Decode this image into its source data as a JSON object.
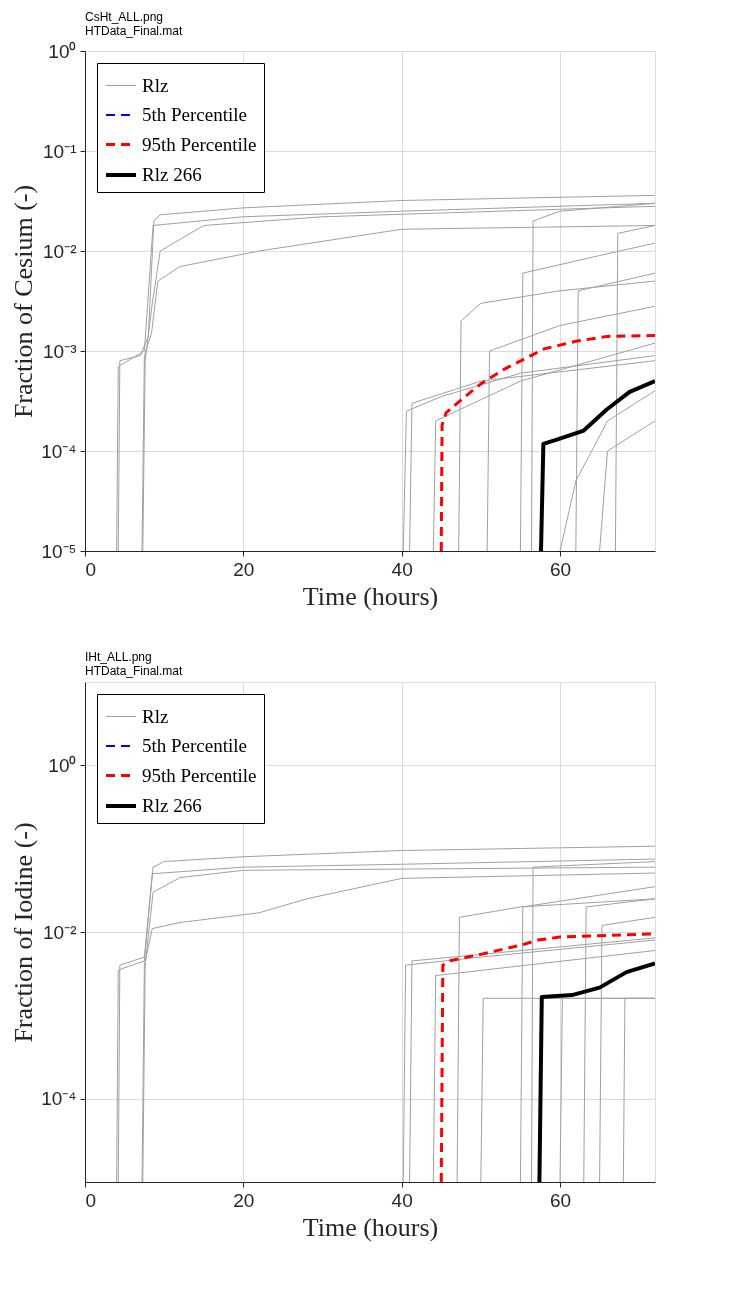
{
  "chart_data": [
    {
      "type": "line",
      "annotations": [
        "CsHt_ALL.png",
        "HTData_Final.mat"
      ],
      "xlabel": "Time (hours)",
      "ylabel": "Fraction of Cesium (-)",
      "log": "y",
      "grid": true,
      "legend": "top left",
      "xlim": [
        0,
        72
      ],
      "xticks": [
        0,
        20,
        40,
        60
      ],
      "ylim": [
        1e-05,
        1
      ],
      "yticks": [
        {
          "value": 1e-05,
          "label": "10⁻⁵"
        },
        {
          "value": 0.0001,
          "label": "10⁻⁴"
        },
        {
          "value": 0.001,
          "label": "10⁻³"
        },
        {
          "value": 0.01,
          "label": "10⁻²"
        },
        {
          "value": 0.1,
          "label": "10⁻¹"
        },
        {
          "value": 1,
          "label": "10⁰"
        }
      ],
      "series": [
        {
          "name": "Rlz",
          "color": "#a0a0a0",
          "line_style": "solid",
          "x": [
            4.2,
            4.4,
            7.0,
            8.0,
            8.7,
            9.5,
            20,
            40,
            72
          ],
          "values": [
            1e-05,
            0.0008,
            0.0009,
            0.0014,
            0.02,
            0.023,
            0.027,
            0.032,
            0.036
          ]
        },
        {
          "color": "#a0a0a0",
          "line_style": "solid",
          "x": [
            4.0,
            4.2,
            7.5,
            8.6,
            20,
            40,
            72
          ],
          "values": [
            1e-05,
            0.0007,
            0.001,
            0.018,
            0.022,
            0.025,
            0.03
          ]
        },
        {
          "color": "#a0a0a0",
          "line_style": "solid",
          "x": [
            7.2,
            7.5,
            8.4,
            9.2,
            12,
            22,
            40,
            72
          ],
          "values": [
            1e-05,
            0.0009,
            0.0015,
            0.005,
            0.007,
            0.01,
            0.0165,
            0.018
          ]
        },
        {
          "color": "#a0a0a0",
          "line_style": "solid",
          "x": [
            7.3,
            7.6,
            8.5,
            9.5,
            15,
            30,
            72
          ],
          "values": [
            1e-05,
            0.0008,
            0.003,
            0.01,
            0.018,
            0.022,
            0.028
          ]
        },
        {
          "color": "#a0a0a0",
          "line_style": "solid",
          "x": [
            56.4,
            56.6,
            60,
            72
          ],
          "values": [
            1e-05,
            0.02,
            0.025,
            0.03
          ]
        },
        {
          "color": "#a0a0a0",
          "line_style": "solid",
          "x": [
            47.2,
            47.5,
            50,
            60,
            72
          ],
          "values": [
            1e-05,
            0.002,
            0.003,
            0.004,
            0.005
          ]
        },
        {
          "color": "#a0a0a0",
          "line_style": "solid",
          "x": [
            50.8,
            51.1,
            60,
            72
          ],
          "values": [
            1e-05,
            0.001,
            0.0018,
            0.0028
          ]
        },
        {
          "color": "#a0a0a0",
          "line_style": "solid",
          "x": [
            55,
            55.3,
            65,
            72
          ],
          "values": [
            1e-05,
            0.006,
            0.009,
            0.012
          ]
        },
        {
          "color": "#a0a0a0",
          "line_style": "solid",
          "x": [
            62,
            62.3,
            72
          ],
          "values": [
            1e-05,
            0.004,
            0.006
          ]
        },
        {
          "color": "#a0a0a0",
          "line_style": "solid",
          "x": [
            67,
            67.3,
            72
          ],
          "values": [
            1e-05,
            0.015,
            0.018
          ]
        },
        {
          "color": "#a0a0a0",
          "line_style": "solid",
          "x": [
            40.2,
            40.6,
            45,
            55,
            72
          ],
          "values": [
            1e-05,
            0.00025,
            0.00035,
            0.0006,
            0.0009
          ]
        },
        {
          "color": "#a0a0a0",
          "line_style": "solid",
          "x": [
            41,
            41.3,
            50,
            72
          ],
          "values": [
            1e-05,
            0.0003,
            0.0005,
            0.0008
          ]
        },
        {
          "color": "#a0a0a0",
          "line_style": "solid",
          "x": [
            44,
            44.3,
            55,
            72
          ],
          "values": [
            1e-05,
            0.0002,
            0.0005,
            0.0012
          ]
        },
        {
          "color": "#a0a0a0",
          "line_style": "solid",
          "x": [
            60,
            62,
            66,
            72
          ],
          "values": [
            1e-05,
            5e-05,
            0.0002,
            0.0004
          ]
        },
        {
          "color": "#a0a0a0",
          "line_style": "solid",
          "x": [
            65,
            66,
            72
          ],
          "values": [
            1e-05,
            0.0001,
            0.0002
          ]
        },
        {
          "name": "5th Percentile",
          "color": "#0000ff",
          "line_style": "dashed"
        },
        {
          "name": "95th Percentile",
          "color": "#ff0000",
          "line_style": "dashed",
          "x": [
            45,
            45.1,
            45.6,
            47,
            50,
            53,
            58,
            62,
            66,
            72
          ],
          "values": [
            1e-05,
            0.00018,
            0.00024,
            0.0003,
            0.00047,
            0.00066,
            0.00105,
            0.00125,
            0.0014,
            0.00143
          ]
        },
        {
          "name": "Rlz 266",
          "color": "#000000",
          "line_style": "solid",
          "x": [
            57.6,
            57.9,
            59.6,
            63,
            65.9,
            68.8,
            72
          ],
          "values": [
            1e-05,
            0.000118,
            0.00013,
            0.00016,
            0.00026,
            0.00039,
            0.0005
          ]
        }
      ]
    },
    {
      "type": "line",
      "annotations": [
        "IHt_ALL.png",
        "HTData_Final.mat"
      ],
      "xlabel": "Time (hours)",
      "ylabel": "Fraction of Iodine (-)",
      "log": "y",
      "grid": true,
      "legend": "top left",
      "xlim": [
        0,
        72
      ],
      "xticks": [
        0,
        20,
        40,
        60
      ],
      "ylim": [
        1e-05,
        10
      ],
      "yticks": [
        {
          "value": 0.0001,
          "label": "10⁻⁴"
        },
        {
          "value": 0.01,
          "label": "10⁻²"
        },
        {
          "value": 1,
          "label": "10⁰"
        }
      ],
      "series": [
        {
          "name": "Rlz",
          "color": "#a0a0a0",
          "line_style": "solid",
          "x": [
            4.2,
            4.4,
            7.5,
            8.6,
            10,
            20,
            40,
            72
          ],
          "values": [
            1e-05,
            0.004,
            0.005,
            0.06,
            0.07,
            0.08,
            0.095,
            0.107
          ]
        },
        {
          "color": "#a0a0a0",
          "line_style": "solid",
          "x": [
            4.0,
            4.2,
            7.5,
            8.5,
            20,
            40,
            72
          ],
          "values": [
            1e-05,
            0.0035,
            0.0045,
            0.05,
            0.06,
            0.065,
            0.075
          ]
        },
        {
          "color": "#a0a0a0",
          "line_style": "solid",
          "x": [
            7.2,
            7.5,
            8.5,
            12,
            22,
            28,
            40,
            72
          ],
          "values": [
            1e-05,
            0.004,
            0.011,
            0.013,
            0.017,
            0.025,
            0.044,
            0.051
          ]
        },
        {
          "color": "#a0a0a0",
          "line_style": "solid",
          "x": [
            7.3,
            7.6,
            8.6,
            12,
            20,
            72
          ],
          "values": [
            1e-05,
            0.004,
            0.03,
            0.045,
            0.055,
            0.06
          ]
        },
        {
          "color": "#a0a0a0",
          "line_style": "solid",
          "x": [
            56.4,
            56.6,
            72
          ],
          "values": [
            1e-05,
            0.06,
            0.07
          ]
        },
        {
          "color": "#a0a0a0",
          "line_style": "solid",
          "x": [
            47,
            47.3,
            55,
            72
          ],
          "values": [
            1e-05,
            0.015,
            0.02,
            0.025
          ]
        },
        {
          "color": "#a0a0a0",
          "line_style": "solid",
          "x": [
            55,
            55.3,
            72
          ],
          "values": [
            1e-05,
            0.02,
            0.035
          ]
        },
        {
          "color": "#a0a0a0",
          "line_style": "solid",
          "x": [
            63,
            63.3,
            72
          ],
          "values": [
            1e-05,
            0.02,
            0.025
          ]
        },
        {
          "color": "#a0a0a0",
          "line_style": "solid",
          "x": [
            65,
            65.3,
            72
          ],
          "values": [
            1e-05,
            0.012,
            0.015
          ]
        },
        {
          "color": "#a0a0a0",
          "line_style": "solid",
          "x": [
            40.2,
            40.5,
            50,
            72
          ],
          "values": [
            1e-05,
            0.004,
            0.005,
            0.008
          ]
        },
        {
          "color": "#a0a0a0",
          "line_style": "solid",
          "x": [
            41,
            41.3,
            72
          ],
          "values": [
            1e-05,
            0.0045,
            0.0085
          ]
        },
        {
          "color": "#a0a0a0",
          "line_style": "solid",
          "x": [
            44,
            44.3,
            72
          ],
          "values": [
            1e-05,
            0.003,
            0.006
          ]
        },
        {
          "color": "#a0a0a0",
          "line_style": "solid",
          "x": [
            50,
            50.3,
            72
          ],
          "values": [
            1e-05,
            0.0016,
            0.0016
          ]
        },
        {
          "color": "#a0a0a0",
          "line_style": "solid",
          "x": [
            60,
            60.3,
            72
          ],
          "values": [
            1e-05,
            0.0016,
            0.0016
          ]
        },
        {
          "color": "#a0a0a0",
          "line_style": "solid",
          "x": [
            68,
            68.2,
            72
          ],
          "values": [
            1e-05,
            0.0016,
            0.0016
          ]
        },
        {
          "name": "5th Percentile",
          "color": "#0000ff",
          "line_style": "dashed"
        },
        {
          "name": "95th Percentile",
          "color": "#ff0000",
          "line_style": "dashed",
          "x": [
            45,
            45.2,
            46,
            50.4,
            55.2,
            57.2,
            60,
            72
          ],
          "values": [
            1e-05,
            0.004,
            0.0045,
            0.0055,
            0.007,
            0.008,
            0.0087,
            0.0095
          ]
        },
        {
          "name": "Rlz 266",
          "color": "#000000",
          "line_style": "solid",
          "x": [
            57.4,
            57.7,
            61.5,
            65,
            68.4,
            72
          ],
          "values": [
            1e-05,
            0.00166,
            0.00175,
            0.00215,
            0.0033,
            0.0042
          ]
        }
      ]
    }
  ]
}
